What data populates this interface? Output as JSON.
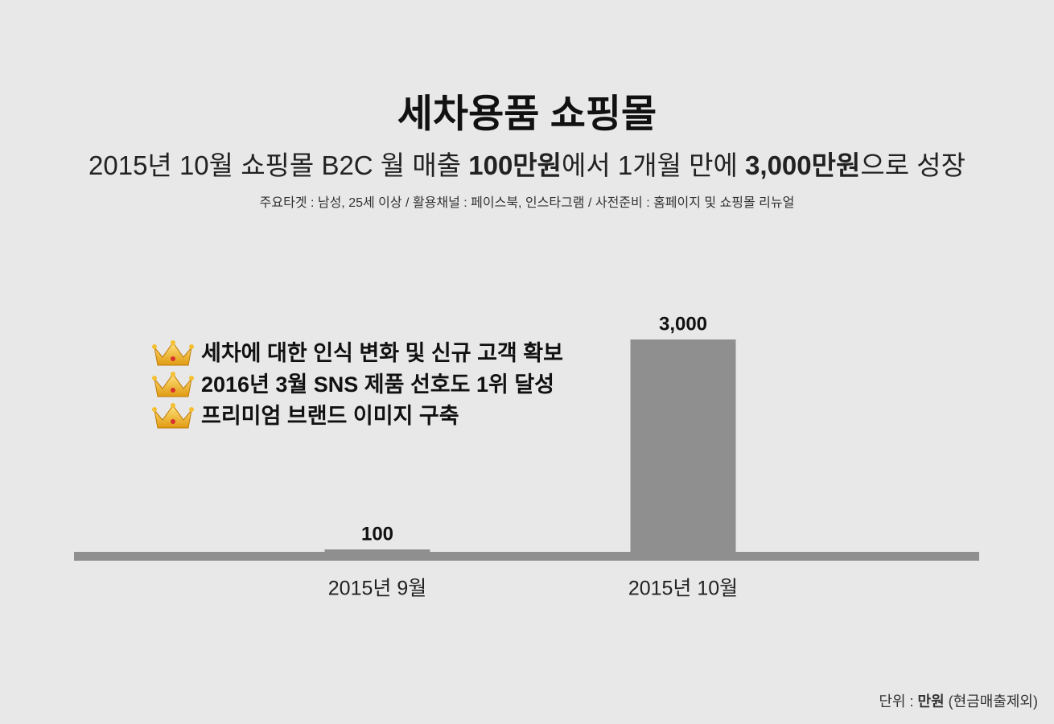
{
  "chart_data": {
    "type": "bar",
    "title": "세차용품 쇼핑몰",
    "subtitle_parts": [
      {
        "text": "2015년 10월 쇼핑몰 B2C 월 매출 ",
        "bold": false
      },
      {
        "text": "100만원",
        "bold": true
      },
      {
        "text": "에서 1개월 만에 ",
        "bold": false
      },
      {
        "text": "3,000만원",
        "bold": true
      },
      {
        "text": "으로 성장",
        "bold": false
      }
    ],
    "info": "주요타겟 : 남성, 25세 이상  /  활용채널 : 페이스북, 인스타그램  /  사전준비 : 홈페이지 및 쇼핑몰 리뉴얼",
    "annotations": [
      "세차에 대한 인식 변화 및 신규 고객 확보",
      "2016년 3월 SNS 제품 선호도 1위 달성",
      "프리미엄 브랜드 이미지 구축"
    ],
    "categories": [
      "2015년 9월",
      "2015년 10월"
    ],
    "values": [
      100,
      3000
    ],
    "value_labels": [
      "100",
      "3,000"
    ],
    "color": "#8f8f8f",
    "ylim": [
      0,
      3000
    ],
    "unit_parts": [
      {
        "text": "단위 : ",
        "bold": false
      },
      {
        "text": "만원",
        "bold": true
      },
      {
        "text": " (현금매출제외)",
        "bold": false
      }
    ]
  }
}
